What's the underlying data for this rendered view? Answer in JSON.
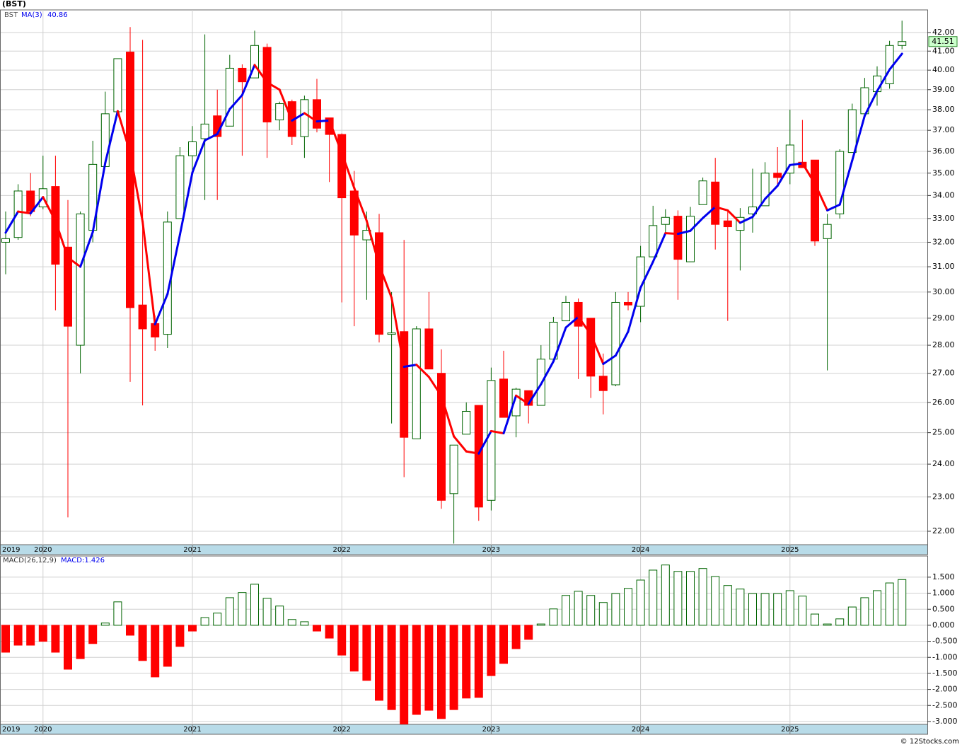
{
  "chart_data": [
    {
      "type": "candlestick",
      "title": "(BST)",
      "symbol": "BST",
      "log_scale": true,
      "grid": true,
      "up_color": "#006400",
      "down_color": "#ff0000",
      "categories": [
        "2019",
        null,
        null,
        "2020",
        null,
        null,
        null,
        null,
        null,
        null,
        null,
        null,
        null,
        null,
        null,
        "2021",
        null,
        null,
        null,
        null,
        null,
        null,
        null,
        null,
        null,
        null,
        null,
        "2022",
        null,
        null,
        null,
        null,
        null,
        null,
        null,
        null,
        null,
        null,
        null,
        "2023",
        null,
        null,
        null,
        null,
        null,
        null,
        null,
        null,
        null,
        null,
        null,
        "2024",
        null,
        null,
        null,
        null,
        null,
        null,
        null,
        null,
        null,
        null,
        null,
        "2025",
        null,
        null,
        null,
        null,
        null,
        null,
        null,
        null,
        null
      ],
      "open": [
        32.0,
        32.2,
        34.2,
        33.5,
        34.4,
        31.8,
        28.0,
        32.5,
        35.3,
        37.9,
        40.95,
        29.5,
        28.8,
        28.4,
        33.0,
        35.8,
        36.6,
        37.7,
        37.2,
        40.1,
        39.6,
        41.2,
        37.5,
        38.4,
        36.7,
        38.5,
        37.6,
        36.8,
        34.2,
        32.1,
        32.4,
        28.4,
        28.5,
        24.8,
        28.6,
        27.0,
        23.1,
        24.95,
        25.9,
        22.9,
        26.8,
        25.55,
        26.4,
        25.9,
        27.5,
        28.9,
        29.6,
        29.0,
        26.9,
        26.6,
        29.6,
        29.45,
        31.4,
        32.75,
        33.1,
        31.2,
        33.6,
        34.6,
        32.9,
        32.5,
        33.2,
        33.55,
        35.0,
        35.0,
        35.5,
        35.6,
        32.15,
        33.2,
        35.95,
        37.8,
        38.9,
        39.3,
        41.3
      ],
      "high": [
        33.3,
        34.5,
        35.0,
        35.8,
        35.8,
        33.8,
        33.3,
        36.5,
        38.9,
        40.6,
        42.3,
        41.6,
        29.1,
        33.3,
        36.2,
        37.2,
        41.9,
        39.0,
        40.8,
        40.3,
        42.1,
        41.4,
        38.4,
        38.5,
        38.7,
        39.55,
        37.6,
        36.85,
        35.1,
        33.3,
        33.2,
        30.0,
        32.1,
        28.7,
        30.0,
        27.85,
        24.6,
        26.0,
        25.9,
        27.2,
        27.8,
        26.5,
        26.4,
        28.0,
        29.05,
        29.85,
        29.75,
        29.0,
        27.7,
        30.0,
        30.0,
        31.85,
        33.55,
        33.4,
        33.35,
        33.5,
        34.8,
        35.7,
        33.3,
        33.45,
        35.2,
        35.5,
        36.2,
        38.0,
        37.5,
        35.6,
        33.2,
        36.1,
        38.3,
        39.6,
        40.2,
        41.55,
        42.65
      ],
      "low": [
        30.7,
        32.1,
        33.1,
        33.4,
        29.3,
        22.4,
        27.0,
        32.0,
        35.3,
        37.9,
        26.7,
        25.9,
        27.8,
        27.9,
        33.0,
        35.1,
        33.8,
        33.8,
        37.2,
        35.8,
        39.6,
        35.7,
        37.0,
        36.3,
        35.7,
        36.9,
        34.6,
        29.6,
        28.7,
        29.7,
        28.1,
        25.3,
        23.6,
        24.8,
        27.15,
        22.65,
        21.65,
        24.95,
        22.3,
        22.6,
        25.5,
        24.85,
        25.3,
        25.9,
        27.5,
        28.9,
        26.8,
        26.15,
        25.6,
        26.55,
        29.3,
        28.85,
        31.4,
        32.4,
        29.7,
        31.2,
        33.6,
        31.7,
        28.9,
        30.85,
        32.4,
        33.55,
        34.5,
        34.5,
        35.25,
        31.85,
        27.1,
        33.0,
        35.95,
        37.8,
        38.2,
        39.05,
        41.1
      ],
      "close": [
        32.15,
        34.2,
        33.3,
        34.3,
        31.1,
        28.7,
        33.2,
        35.4,
        37.8,
        40.6,
        29.4,
        28.6,
        28.3,
        32.85,
        35.8,
        36.45,
        37.3,
        36.7,
        40.1,
        39.4,
        41.3,
        37.4,
        38.3,
        36.7,
        38.5,
        37.1,
        36.8,
        33.9,
        32.3,
        32.5,
        28.4,
        28.45,
        24.85,
        28.6,
        27.15,
        22.9,
        24.6,
        25.7,
        22.7,
        26.75,
        25.5,
        26.45,
        25.9,
        27.5,
        28.85,
        29.6,
        28.7,
        26.9,
        26.4,
        29.6,
        29.5,
        31.4,
        32.7,
        33.05,
        31.3,
        33.1,
        34.65,
        32.75,
        32.65,
        33.05,
        33.5,
        35.0,
        34.8,
        36.3,
        35.25,
        32.05,
        32.75,
        36.0,
        38.0,
        39.1,
        39.7,
        41.3,
        41.51
      ],
      "series": [
        {
          "name": "MA(3)",
          "rise_color": "#0000ee",
          "fall_color": "#ff0000",
          "values": [
            32.4,
            33.3,
            33.22,
            33.93,
            32.9,
            31.37,
            31.0,
            32.43,
            35.47,
            37.93,
            35.93,
            32.87,
            28.77,
            29.92,
            32.32,
            35.03,
            36.52,
            36.82,
            38.03,
            38.73,
            40.27,
            39.37,
            39.0,
            37.47,
            37.83,
            37.43,
            37.47,
            35.93,
            34.33,
            32.9,
            31.07,
            29.78,
            27.23,
            27.3,
            26.87,
            26.22,
            24.88,
            24.4,
            24.33,
            25.05,
            24.98,
            26.23,
            25.95,
            26.62,
            27.42,
            28.65,
            29.05,
            28.4,
            27.33,
            27.63,
            28.5,
            30.17,
            31.2,
            32.38,
            32.35,
            32.48,
            33.02,
            33.5,
            33.35,
            32.82,
            33.07,
            33.85,
            34.43,
            35.37,
            35.45,
            34.53,
            33.35,
            33.6,
            35.58,
            37.7,
            38.93,
            40.03,
            40.86
          ]
        }
      ],
      "ylim": [
        21.62,
        43.25
      ],
      "yticks": [
        {
          "value": 22,
          "label": "22.00"
        },
        {
          "value": 23,
          "label": "23.00"
        },
        {
          "value": 24,
          "label": "24.00"
        },
        {
          "value": 25,
          "label": "25.00"
        },
        {
          "value": 26,
          "label": "26.00"
        },
        {
          "value": 27,
          "label": "27.00"
        },
        {
          "value": 28,
          "label": "28.00"
        },
        {
          "value": 29,
          "label": "29.00"
        },
        {
          "value": 30,
          "label": "30.00"
        },
        {
          "value": 31,
          "label": "31.00"
        },
        {
          "value": 32,
          "label": "32.00"
        },
        {
          "value": 33,
          "label": "33.00"
        },
        {
          "value": 34,
          "label": "34.00"
        },
        {
          "value": 35,
          "label": "35.00"
        },
        {
          "value": 36,
          "label": "36.00"
        },
        {
          "value": 37,
          "label": "37.00"
        },
        {
          "value": 38,
          "label": "38.00"
        },
        {
          "value": 39,
          "label": "39.00"
        },
        {
          "value": 40,
          "label": "40.00"
        },
        {
          "value": 41,
          "label": "41.00"
        },
        {
          "value": 42,
          "label": "42.00"
        }
      ]
    },
    {
      "type": "bar",
      "name": "MACD(26,12,9)",
      "legend_text": "MACD:1.426",
      "grid": true,
      "up_color": "#006400",
      "down_color": "#ff0000",
      "categories": [
        "2019",
        null,
        null,
        "2020",
        null,
        null,
        null,
        null,
        null,
        null,
        null,
        null,
        null,
        null,
        null,
        "2021",
        null,
        null,
        null,
        null,
        null,
        null,
        null,
        null,
        null,
        null,
        null,
        "2022",
        null,
        null,
        null,
        null,
        null,
        null,
        null,
        null,
        null,
        null,
        null,
        "2023",
        null,
        null,
        null,
        null,
        null,
        null,
        null,
        null,
        null,
        null,
        null,
        "2024",
        null,
        null,
        null,
        null,
        null,
        null,
        null,
        null,
        null,
        null,
        null,
        "2025",
        null,
        null,
        null,
        null,
        null,
        null,
        null,
        null,
        null
      ],
      "values": [
        -0.84,
        -0.62,
        -0.62,
        -0.5,
        -0.84,
        -1.37,
        -1.04,
        -0.57,
        0.07,
        0.73,
        -0.31,
        -1.1,
        -1.61,
        -1.28,
        -0.66,
        -0.18,
        0.24,
        0.38,
        0.86,
        1.02,
        1.28,
        0.84,
        0.6,
        0.18,
        0.11,
        -0.18,
        -0.4,
        -0.93,
        -1.43,
        -1.72,
        -2.34,
        -2.63,
        -3.08,
        -2.78,
        -2.65,
        -2.91,
        -2.63,
        -2.27,
        -2.25,
        -1.57,
        -1.19,
        -0.73,
        -0.44,
        0.04,
        0.51,
        0.93,
        1.06,
        0.93,
        0.71,
        0.99,
        1.15,
        1.41,
        1.72,
        1.88,
        1.68,
        1.68,
        1.77,
        1.52,
        1.24,
        1.13,
        0.99,
        0.99,
        0.99,
        1.08,
        0.91,
        0.35,
        0.04,
        0.2,
        0.57,
        0.86,
        1.08,
        1.32,
        1.426
      ],
      "ylim": [
        -3.09,
        2.16
      ],
      "yticks": [
        {
          "value": -3,
          "label": "-3.000"
        },
        {
          "value": -2.5,
          "label": "-2.500"
        },
        {
          "value": -2,
          "label": "-2.000"
        },
        {
          "value": -1.5,
          "label": "-1.500"
        },
        {
          "value": -1,
          "label": "-1.000"
        },
        {
          "value": -0.5,
          "label": "-0.500"
        },
        {
          "value": 0,
          "label": "0.000"
        },
        {
          "value": 0.5,
          "label": "0.500"
        },
        {
          "value": 1,
          "label": "1.000"
        },
        {
          "value": 1.5,
          "label": "1.500"
        }
      ]
    }
  ],
  "footer": "© 12Stocks.com"
}
